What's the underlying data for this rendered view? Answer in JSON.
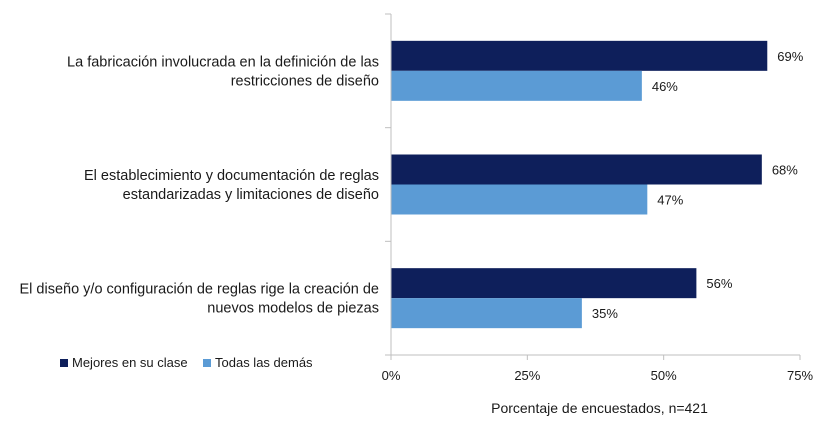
{
  "chart_data": {
    "type": "bar",
    "orientation": "horizontal",
    "categories": [
      [
        "La fabricación involucrada en la definición de las",
        "restricciones de diseño"
      ],
      [
        "El establecimiento y documentación de reglas",
        "estandarizadas y limitaciones de diseño"
      ],
      [
        "El diseño y/o configuración de reglas rige la creación de",
        "nuevos modelos de piezas"
      ]
    ],
    "series": [
      {
        "name": "Mejores en su clase",
        "color": "#0e1f5b",
        "values": [
          69,
          68,
          56
        ],
        "labels": [
          "69%",
          "68%",
          "56%"
        ]
      },
      {
        "name": "Todas las demás",
        "color": "#5b9bd5",
        "values": [
          46,
          47,
          35
        ],
        "labels": [
          "46%",
          "47%",
          "35%"
        ]
      }
    ],
    "xlim": [
      0,
      75
    ],
    "xticks": [
      0,
      25,
      50,
      75
    ],
    "xtick_labels": [
      "0%",
      "25%",
      "50%",
      "75%"
    ],
    "xlabel": "Porcentaje de encuestados, n=421",
    "ylabel": "",
    "title": "",
    "grid": false,
    "legend_position": "bottom-left"
  }
}
